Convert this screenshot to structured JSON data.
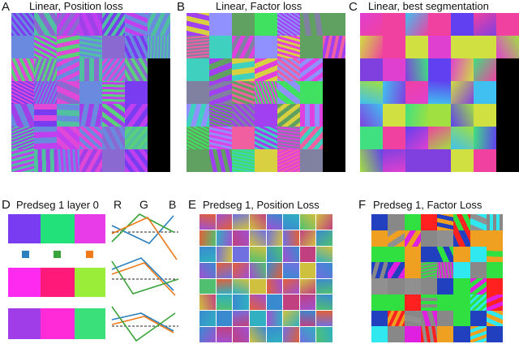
{
  "panels": {
    "A": {
      "letter": "A",
      "title": "Linear, Position loss"
    },
    "B": {
      "letter": "B",
      "title": "Linear, Factor loss"
    },
    "C": {
      "letter": "C",
      "title": "Linear, best segmentation"
    },
    "D": {
      "letter": "D",
      "title": "Predseg 1 layer 0"
    },
    "E": {
      "letter": "E",
      "title": "Predseg 1, Position Loss"
    },
    "F": {
      "letter": "F",
      "title": "Predseg 1, Factor Loss"
    }
  },
  "rgb_labels": [
    "R",
    "G",
    "B"
  ],
  "colors": {
    "channel_r": "#2a7fbf",
    "channel_g": "#3aa33a",
    "channel_b": "#f07a1a",
    "d_row1": [
      "#7a3cf0",
      "#22e07a",
      "#e83ce8"
    ],
    "d_row2": [
      "#ff2aef",
      "#ff1a7a",
      "#9aee3a"
    ],
    "d_row3": [
      "#a03ce8",
      "#ff2ad8",
      "#3ae07a"
    ]
  }
}
